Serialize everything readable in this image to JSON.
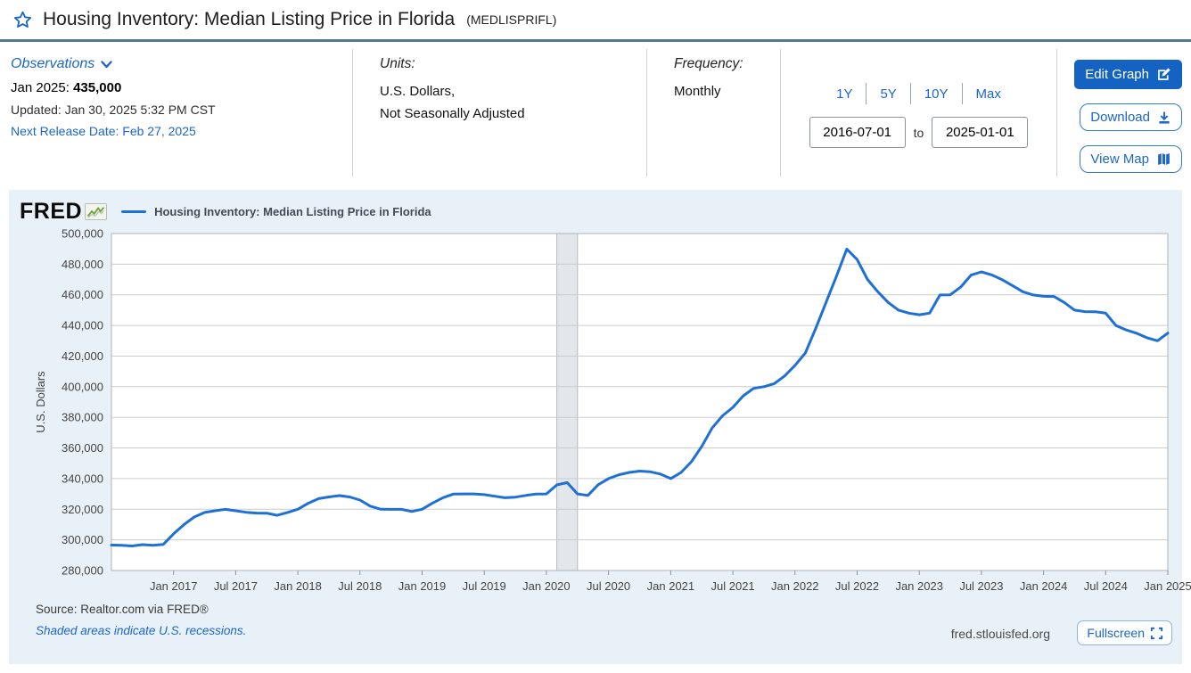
{
  "header": {
    "title": "Housing Inventory: Median Listing Price in Florida",
    "series_id": "(MEDLISPRIFL)"
  },
  "meta": {
    "observations": {
      "label": "Observations",
      "latest_period": "Jan 2025: ",
      "latest_value": "435,000",
      "updated": "Updated: Jan 30, 2025 5:32 PM CST",
      "next_release": "Next Release Date: Feb 27, 2025"
    },
    "units": {
      "label": "Units:",
      "line1": "U.S. Dollars,",
      "line2": "Not Seasonally Adjusted"
    },
    "frequency": {
      "label": "Frequency:",
      "value": "Monthly"
    },
    "range": {
      "presets": [
        "1Y",
        "5Y",
        "10Y",
        "Max"
      ],
      "start": "2016-07-01",
      "to_label": "to",
      "end": "2025-01-01"
    },
    "actions": {
      "edit_graph": "Edit Graph",
      "download": "Download",
      "view_map": "View Map"
    }
  },
  "chart": {
    "logo_text": "FRED",
    "legend": "Housing Inventory: Median Listing Price in Florida",
    "source": "Source: Realtor.com via FRED®",
    "recession_note": "Shaded areas indicate U.S. recessions.",
    "site": "fred.stlouisfed.org",
    "fullscreen_label": "Fullscreen"
  },
  "colors": {
    "accent_blue": "#1b66c9",
    "primary_button_blue": "#1463c2",
    "line_blue": "#1f70d6",
    "panel_background": "#e9f1f8",
    "recession_band": "#e3e6ea",
    "gridline": "#cccccc",
    "header_rule": "#54788e"
  },
  "chart_data": {
    "type": "line",
    "title": "Housing Inventory: Median Listing Price in Florida",
    "xlabel": "",
    "ylabel": "U.S. Dollars",
    "ylim": [
      280000,
      500000
    ],
    "grid": true,
    "legend_position": "top-left",
    "line_color": "#1f70d6",
    "y_ticks": [
      280000,
      300000,
      320000,
      340000,
      360000,
      380000,
      400000,
      420000,
      440000,
      460000,
      480000,
      500000
    ],
    "x_tick_labels": [
      "Jan 2017",
      "Jul 2017",
      "Jan 2018",
      "Jul 2018",
      "Jan 2019",
      "Jul 2019",
      "Jan 2020",
      "Jul 2020",
      "Jan 2021",
      "Jul 2021",
      "Jan 2022",
      "Jul 2022",
      "Jan 2023",
      "Jul 2023",
      "Jan 2024",
      "Jul 2024",
      "Jan 2025"
    ],
    "x_tick_indices": [
      6,
      12,
      18,
      24,
      30,
      36,
      42,
      48,
      54,
      60,
      66,
      72,
      78,
      84,
      90,
      96,
      102
    ],
    "recession_bands": [
      {
        "start": "2020-02",
        "end": "2020-04"
      }
    ],
    "x": [
      "2016-07",
      "2016-08",
      "2016-09",
      "2016-10",
      "2016-11",
      "2016-12",
      "2017-01",
      "2017-02",
      "2017-03",
      "2017-04",
      "2017-05",
      "2017-06",
      "2017-07",
      "2017-08",
      "2017-09",
      "2017-10",
      "2017-11",
      "2017-12",
      "2018-01",
      "2018-02",
      "2018-03",
      "2018-04",
      "2018-05",
      "2018-06",
      "2018-07",
      "2018-08",
      "2018-09",
      "2018-10",
      "2018-11",
      "2018-12",
      "2019-01",
      "2019-02",
      "2019-03",
      "2019-04",
      "2019-05",
      "2019-06",
      "2019-07",
      "2019-08",
      "2019-09",
      "2019-10",
      "2019-11",
      "2019-12",
      "2020-01",
      "2020-02",
      "2020-03",
      "2020-04",
      "2020-05",
      "2020-06",
      "2020-07",
      "2020-08",
      "2020-09",
      "2020-10",
      "2020-11",
      "2020-12",
      "2021-01",
      "2021-02",
      "2021-03",
      "2021-04",
      "2021-05",
      "2021-06",
      "2021-07",
      "2021-08",
      "2021-09",
      "2021-10",
      "2021-11",
      "2021-12",
      "2022-01",
      "2022-02",
      "2022-03",
      "2022-04",
      "2022-05",
      "2022-06",
      "2022-07",
      "2022-08",
      "2022-09",
      "2022-10",
      "2022-11",
      "2022-12",
      "2023-01",
      "2023-02",
      "2023-03",
      "2023-04",
      "2023-05",
      "2023-06",
      "2023-07",
      "2023-08",
      "2023-09",
      "2023-10",
      "2023-11",
      "2023-12",
      "2024-01",
      "2024-02",
      "2024-03",
      "2024-04",
      "2024-05",
      "2024-06",
      "2024-07",
      "2024-08",
      "2024-09",
      "2024-10",
      "2024-11",
      "2024-12",
      "2025-01"
    ],
    "values": [
      296600,
      296500,
      296000,
      296900,
      296500,
      297000,
      303900,
      309900,
      314900,
      317900,
      319000,
      319900,
      319000,
      318000,
      317500,
      317400,
      316000,
      317900,
      320000,
      323900,
      326900,
      328000,
      328900,
      328000,
      326000,
      322000,
      320000,
      319900,
      319900,
      318500,
      320000,
      324000,
      327500,
      329900,
      330000,
      330000,
      329500,
      328500,
      327500,
      327900,
      329000,
      329900,
      330000,
      335900,
      337400,
      330000,
      329000,
      336000,
      340000,
      342500,
      344000,
      344900,
      344500,
      343000,
      340000,
      344000,
      351000,
      361000,
      373000,
      381000,
      386500,
      394000,
      398900,
      400000,
      402000,
      407000,
      413900,
      422000,
      438000,
      455000,
      472000,
      489900,
      483000,
      470000,
      462000,
      455000,
      450000,
      448000,
      447000,
      448000,
      459900,
      460000,
      465000,
      472900,
      475000,
      473000,
      469900,
      466000,
      462000,
      459900,
      459000,
      458900,
      455000,
      450000,
      449000,
      448900,
      448000,
      439900,
      437000,
      434900,
      431900,
      430000,
      435000
    ]
  }
}
